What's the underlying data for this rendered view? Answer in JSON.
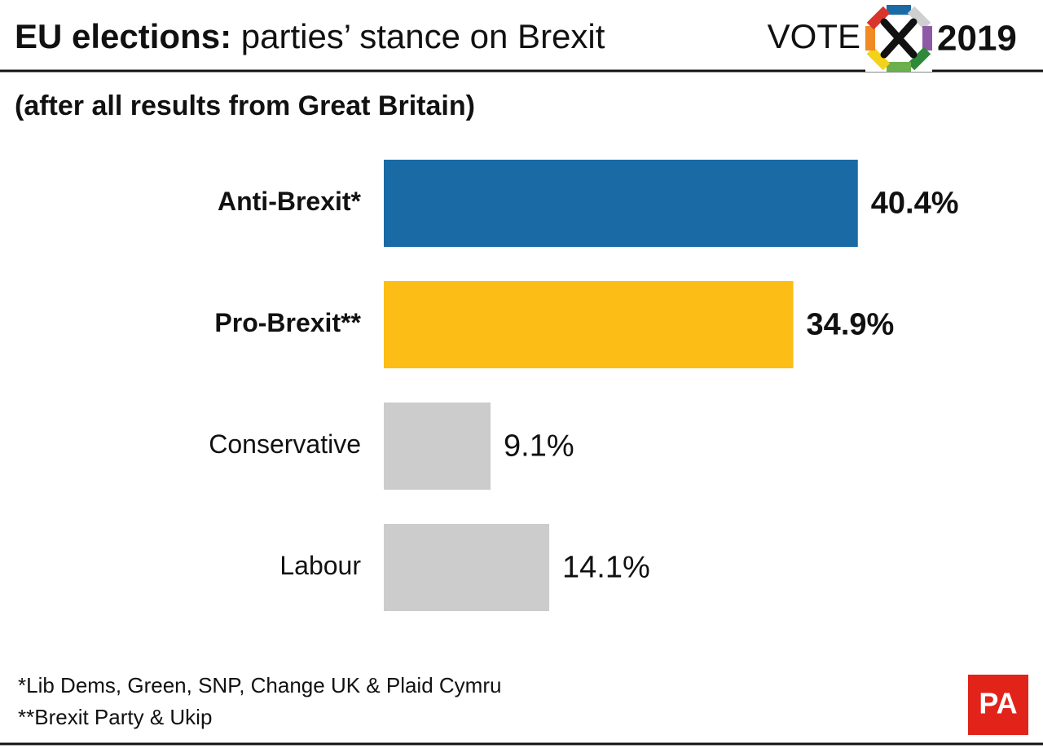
{
  "chart_data": {
    "type": "bar",
    "title_lead": "EU elections:",
    "title": "parties’ stance on Brexit",
    "logo": {
      "left": "VOTE",
      "right": "2019"
    },
    "subtitle": "(after all results from Great Britain)",
    "categories": [
      "Anti-Brexit*",
      "Pro-Brexit**",
      "Conservative",
      "Labour"
    ],
    "values": [
      40.4,
      34.9,
      9.1,
      14.1
    ],
    "value_labels": [
      "40.4%",
      "34.9%",
      "9.1%",
      "14.1%"
    ],
    "colors": [
      "#1a6aa5",
      "#fbbd16",
      "#cccccc",
      "#cccccc"
    ],
    "highlight": [
      true,
      true,
      false,
      false
    ],
    "xlim": [
      0,
      50
    ],
    "footnotes": [
      "*Lib Dems, Green, SNP, Change UK & Plaid Cymru",
      "**Brexit Party & Ukip"
    ],
    "source": "PA"
  }
}
